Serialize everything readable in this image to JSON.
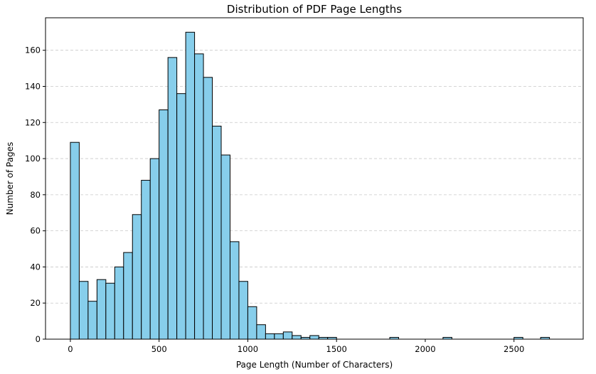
{
  "chart_data": {
    "type": "bar",
    "title": "Distribution of PDF Page Lengths",
    "xlabel": "Page Length (Number of Characters)",
    "ylabel": "Number of Pages",
    "xlim": [
      -140,
      2890
    ],
    "ylim": [
      0,
      178
    ],
    "xticks": [
      0,
      500,
      1000,
      1500,
      2000,
      2500
    ],
    "yticks": [
      0,
      20,
      40,
      60,
      80,
      100,
      120,
      140,
      160
    ],
    "grid": "y",
    "bin_width": 50,
    "bins": [
      {
        "x": 0,
        "count": 109
      },
      {
        "x": 50,
        "count": 32
      },
      {
        "x": 100,
        "count": 21
      },
      {
        "x": 150,
        "count": 33
      },
      {
        "x": 200,
        "count": 31
      },
      {
        "x": 250,
        "count": 40
      },
      {
        "x": 300,
        "count": 48
      },
      {
        "x": 350,
        "count": 69
      },
      {
        "x": 400,
        "count": 88
      },
      {
        "x": 450,
        "count": 100
      },
      {
        "x": 500,
        "count": 127
      },
      {
        "x": 550,
        "count": 156
      },
      {
        "x": 600,
        "count": 136
      },
      {
        "x": 650,
        "count": 170
      },
      {
        "x": 700,
        "count": 158
      },
      {
        "x": 750,
        "count": 145
      },
      {
        "x": 800,
        "count": 118
      },
      {
        "x": 850,
        "count": 102
      },
      {
        "x": 900,
        "count": 54
      },
      {
        "x": 950,
        "count": 32
      },
      {
        "x": 1000,
        "count": 18
      },
      {
        "x": 1050,
        "count": 8
      },
      {
        "x": 1100,
        "count": 3
      },
      {
        "x": 1150,
        "count": 3
      },
      {
        "x": 1200,
        "count": 4
      },
      {
        "x": 1250,
        "count": 2
      },
      {
        "x": 1300,
        "count": 1
      },
      {
        "x": 1350,
        "count": 2
      },
      {
        "x": 1400,
        "count": 1
      },
      {
        "x": 1450,
        "count": 1
      },
      {
        "x": 1800,
        "count": 1
      },
      {
        "x": 2100,
        "count": 1
      },
      {
        "x": 2500,
        "count": 1
      },
      {
        "x": 2650,
        "count": 1
      }
    ],
    "colors": {
      "bar_fill": "#87CEEB",
      "bar_edge": "#000000",
      "grid": "#c8c8c8"
    }
  }
}
